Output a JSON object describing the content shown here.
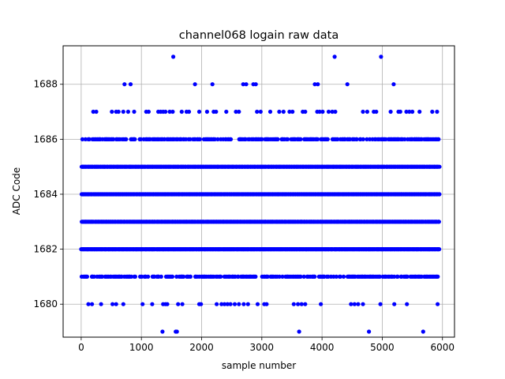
{
  "chart_data": {
    "type": "scatter",
    "title": "channel068 logain raw data",
    "xlabel": "sample number",
    "ylabel": "ADC Code",
    "xlim": [
      -300,
      6200
    ],
    "ylim": [
      1678.8,
      1689.4
    ],
    "xticks": [
      0,
      1000,
      2000,
      3000,
      4000,
      5000,
      6000
    ],
    "yticks": [
      1680,
      1682,
      1684,
      1686,
      1688
    ],
    "grid": true,
    "marker_color": "#0000ff",
    "sample_count": 5950,
    "series": [
      {
        "levels": [
          {
            "y": 1686,
            "density": 0.55
          },
          {
            "y": 1685,
            "density": 1.0
          },
          {
            "y": 1684,
            "density": 1.0
          },
          {
            "y": 1683,
            "density": 1.0
          },
          {
            "y": 1682,
            "density": 1.0
          },
          {
            "y": 1681,
            "density": 0.5
          }
        ],
        "sparse_points": [
          {
            "x": 1530,
            "y": 1689
          },
          {
            "x": 4210,
            "y": 1689
          },
          {
            "x": 4980,
            "y": 1689
          },
          {
            "x": 720,
            "y": 1688
          },
          {
            "x": 820,
            "y": 1688
          },
          {
            "x": 1890,
            "y": 1688
          },
          {
            "x": 2180,
            "y": 1688
          },
          {
            "x": 2690,
            "y": 1688
          },
          {
            "x": 2740,
            "y": 1688
          },
          {
            "x": 2860,
            "y": 1688
          },
          {
            "x": 2900,
            "y": 1688
          },
          {
            "x": 3880,
            "y": 1688
          },
          {
            "x": 3930,
            "y": 1688
          },
          {
            "x": 4420,
            "y": 1688
          },
          {
            "x": 5190,
            "y": 1688
          },
          {
            "x": 200,
            "y": 1687
          },
          {
            "x": 250,
            "y": 1687
          },
          {
            "x": 510,
            "y": 1687
          },
          {
            "x": 580,
            "y": 1687
          },
          {
            "x": 620,
            "y": 1687
          },
          {
            "x": 700,
            "y": 1687
          },
          {
            "x": 780,
            "y": 1687
          },
          {
            "x": 880,
            "y": 1687
          },
          {
            "x": 1080,
            "y": 1687
          },
          {
            "x": 1120,
            "y": 1687
          },
          {
            "x": 1280,
            "y": 1687
          },
          {
            "x": 1320,
            "y": 1687
          },
          {
            "x": 1360,
            "y": 1687
          },
          {
            "x": 1400,
            "y": 1687
          },
          {
            "x": 1470,
            "y": 1687
          },
          {
            "x": 1520,
            "y": 1687
          },
          {
            "x": 1670,
            "y": 1687
          },
          {
            "x": 1750,
            "y": 1687
          },
          {
            "x": 1790,
            "y": 1687
          },
          {
            "x": 1960,
            "y": 1687
          },
          {
            "x": 2090,
            "y": 1687
          },
          {
            "x": 2200,
            "y": 1687
          },
          {
            "x": 2240,
            "y": 1687
          },
          {
            "x": 2410,
            "y": 1687
          },
          {
            "x": 2570,
            "y": 1687
          },
          {
            "x": 2620,
            "y": 1687
          },
          {
            "x": 2920,
            "y": 1687
          },
          {
            "x": 2980,
            "y": 1687
          },
          {
            "x": 3140,
            "y": 1687
          },
          {
            "x": 3290,
            "y": 1687
          },
          {
            "x": 3360,
            "y": 1687
          },
          {
            "x": 3460,
            "y": 1687
          },
          {
            "x": 3510,
            "y": 1687
          },
          {
            "x": 3680,
            "y": 1687
          },
          {
            "x": 3720,
            "y": 1687
          },
          {
            "x": 3920,
            "y": 1687
          },
          {
            "x": 3960,
            "y": 1687
          },
          {
            "x": 4010,
            "y": 1687
          },
          {
            "x": 4110,
            "y": 1687
          },
          {
            "x": 4170,
            "y": 1687
          },
          {
            "x": 4220,
            "y": 1687
          },
          {
            "x": 4680,
            "y": 1687
          },
          {
            "x": 4750,
            "y": 1687
          },
          {
            "x": 4860,
            "y": 1687
          },
          {
            "x": 4900,
            "y": 1687
          },
          {
            "x": 5140,
            "y": 1687
          },
          {
            "x": 5270,
            "y": 1687
          },
          {
            "x": 5300,
            "y": 1687
          },
          {
            "x": 5400,
            "y": 1687
          },
          {
            "x": 5450,
            "y": 1687
          },
          {
            "x": 5500,
            "y": 1687
          },
          {
            "x": 5620,
            "y": 1687
          },
          {
            "x": 5830,
            "y": 1687
          },
          {
            "x": 5910,
            "y": 1687
          },
          {
            "x": 120,
            "y": 1680
          },
          {
            "x": 180,
            "y": 1680
          },
          {
            "x": 330,
            "y": 1680
          },
          {
            "x": 520,
            "y": 1680
          },
          {
            "x": 580,
            "y": 1680
          },
          {
            "x": 700,
            "y": 1680
          },
          {
            "x": 1020,
            "y": 1680
          },
          {
            "x": 1180,
            "y": 1680
          },
          {
            "x": 1360,
            "y": 1680
          },
          {
            "x": 1400,
            "y": 1680
          },
          {
            "x": 1430,
            "y": 1680
          },
          {
            "x": 1610,
            "y": 1680
          },
          {
            "x": 1680,
            "y": 1680
          },
          {
            "x": 1960,
            "y": 1680
          },
          {
            "x": 1990,
            "y": 1680
          },
          {
            "x": 2250,
            "y": 1680
          },
          {
            "x": 2330,
            "y": 1680
          },
          {
            "x": 2380,
            "y": 1680
          },
          {
            "x": 2430,
            "y": 1680
          },
          {
            "x": 2480,
            "y": 1680
          },
          {
            "x": 2550,
            "y": 1680
          },
          {
            "x": 2620,
            "y": 1680
          },
          {
            "x": 2700,
            "y": 1680
          },
          {
            "x": 2770,
            "y": 1680
          },
          {
            "x": 2930,
            "y": 1680
          },
          {
            "x": 3040,
            "y": 1680
          },
          {
            "x": 3080,
            "y": 1680
          },
          {
            "x": 3530,
            "y": 1680
          },
          {
            "x": 3600,
            "y": 1680
          },
          {
            "x": 3660,
            "y": 1680
          },
          {
            "x": 3720,
            "y": 1680
          },
          {
            "x": 3980,
            "y": 1680
          },
          {
            "x": 4480,
            "y": 1680
          },
          {
            "x": 4540,
            "y": 1680
          },
          {
            "x": 4600,
            "y": 1680
          },
          {
            "x": 4680,
            "y": 1680
          },
          {
            "x": 4970,
            "y": 1680
          },
          {
            "x": 5200,
            "y": 1680
          },
          {
            "x": 5410,
            "y": 1680
          },
          {
            "x": 5920,
            "y": 1680
          },
          {
            "x": 1350,
            "y": 1679
          },
          {
            "x": 1570,
            "y": 1679
          },
          {
            "x": 1590,
            "y": 1679
          },
          {
            "x": 3620,
            "y": 1679
          },
          {
            "x": 4780,
            "y": 1679
          },
          {
            "x": 5680,
            "y": 1679
          }
        ]
      }
    ]
  }
}
